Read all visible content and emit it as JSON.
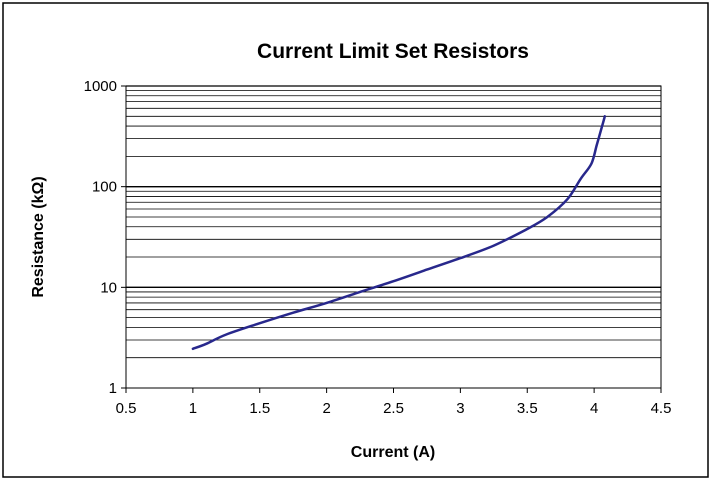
{
  "chart_data": {
    "type": "line",
    "title": "Current Limit Set Resistors",
    "xlabel": "Current (A)",
    "ylabel": "Resistance (kΩ)",
    "xlim": [
      0.5,
      4.5
    ],
    "ylim": [
      1,
      1000
    ],
    "y_scale": "log",
    "grid": "horizontal major and minor",
    "legend": "none",
    "x_ticks": [
      "0.5",
      "1",
      "1.5",
      "2",
      "2.5",
      "3",
      "3.5",
      "4",
      "4.5"
    ],
    "y_ticks": [
      "1",
      "10",
      "100",
      "1000"
    ],
    "series": [
      {
        "color": "#28288c",
        "x": [
          1.0,
          1.1,
          1.25,
          1.5,
          1.75,
          2.0,
          2.25,
          2.5,
          2.75,
          3.0,
          3.25,
          3.5,
          3.65,
          3.8,
          3.9,
          3.98,
          4.02,
          4.06,
          4.08
        ],
        "y": [
          2.45,
          2.75,
          3.4,
          4.4,
          5.6,
          7.0,
          9.0,
          11.5,
          15.0,
          19.5,
          26.0,
          38.0,
          50.0,
          75.0,
          120.0,
          170.0,
          260.0,
          400.0,
          500.0
        ]
      }
    ]
  }
}
